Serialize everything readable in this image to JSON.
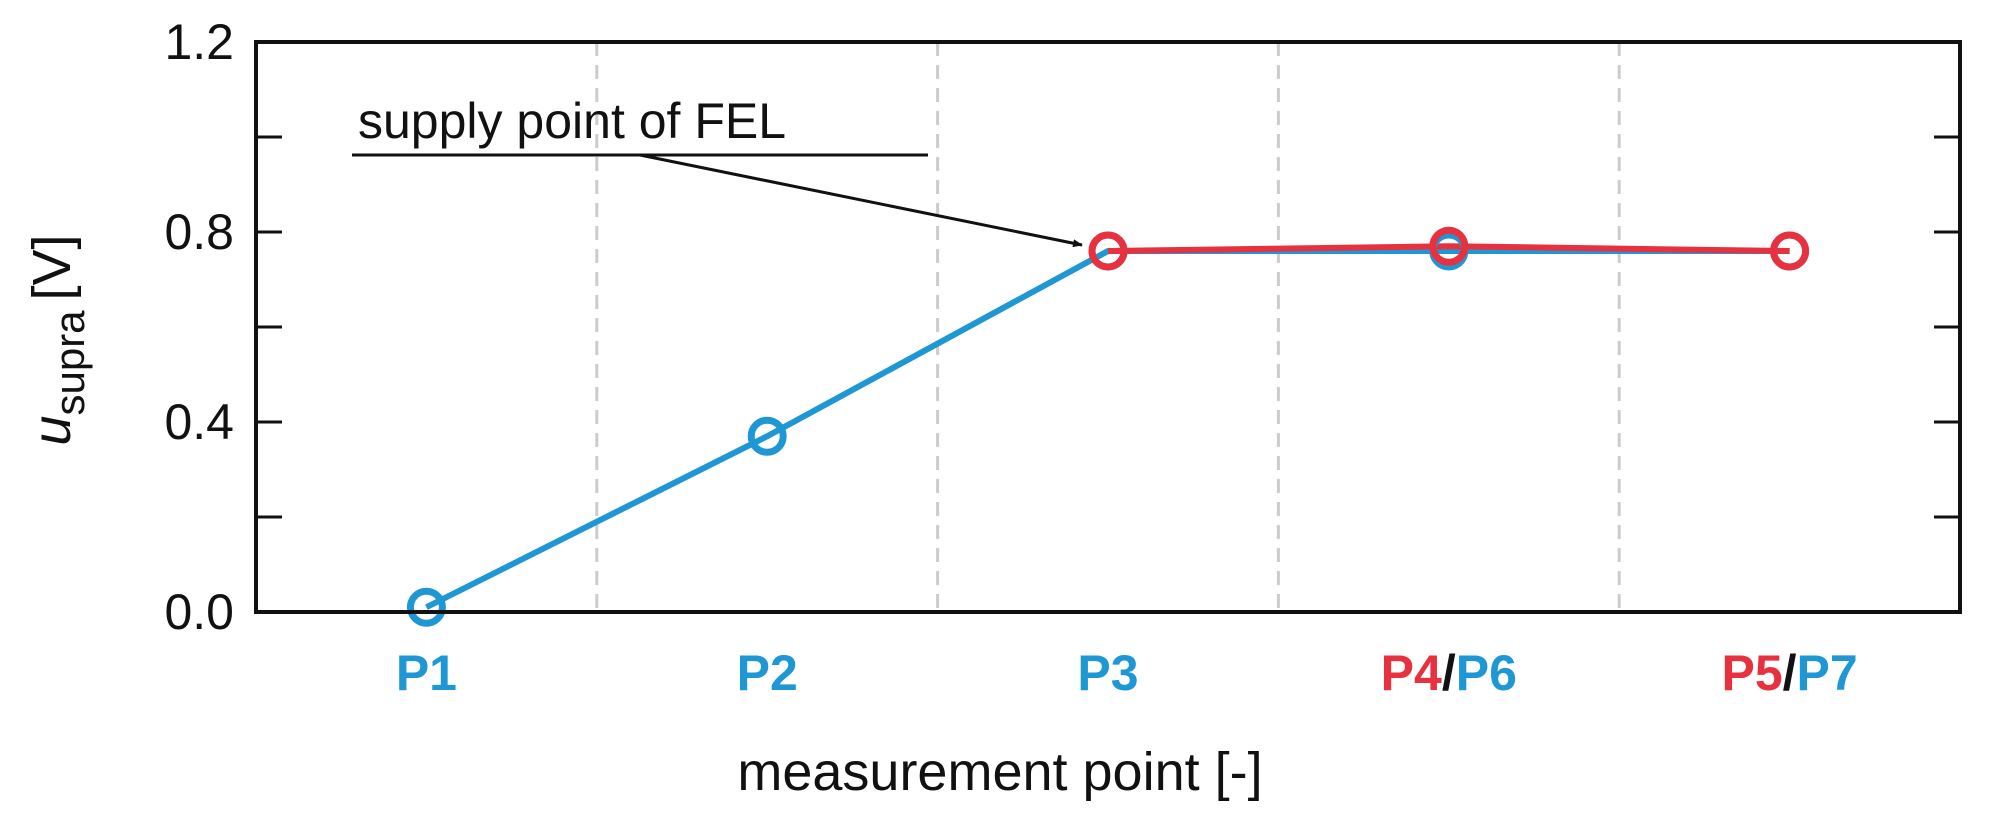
{
  "colors": {
    "blue": "#1f97d4",
    "red": "#e8313f",
    "grid": "#cccccc",
    "axis": "#111111"
  },
  "chart_data": {
    "type": "line",
    "categories": [
      "P1",
      "P2",
      "P3",
      "P4/P6",
      "P5/P7"
    ],
    "x_tick_labels": [
      [
        {
          "text": "P1",
          "color": "blue"
        }
      ],
      [
        {
          "text": "P2",
          "color": "blue"
        }
      ],
      [
        {
          "text": "P3",
          "color": "blue"
        }
      ],
      [
        {
          "text": "P4",
          "color": "red"
        },
        {
          "text": "/",
          "color": "axis"
        },
        {
          "text": "P6",
          "color": "blue"
        }
      ],
      [
        {
          "text": "P5",
          "color": "red"
        },
        {
          "text": "/",
          "color": "axis"
        },
        {
          "text": "P7",
          "color": "blue"
        }
      ]
    ],
    "series": [
      {
        "color": "blue",
        "points": [
          [
            0,
            0.01
          ],
          [
            1,
            0.37
          ],
          [
            2,
            0.76
          ],
          [
            3,
            0.76
          ],
          [
            4,
            0.76
          ]
        ]
      },
      {
        "color": "red",
        "points": [
          [
            2,
            0.76
          ],
          [
            3,
            0.77
          ],
          [
            4,
            0.76
          ]
        ]
      }
    ],
    "ylabel_main": "u",
    "ylabel_sub": "supra",
    "ylabel_unit": "[V]",
    "xlabel": "measurement point [-]",
    "ylim": [
      0,
      1.2
    ],
    "y_ticks": [
      "0.0",
      "0.4",
      "0.8",
      "1.2"
    ],
    "y_tick_values": [
      0,
      0.4,
      0.8,
      1.2
    ],
    "y_minor_ticks": [
      0.2,
      0.6,
      1.0
    ],
    "grid": "vertical dashed between categories",
    "annotation": {
      "text": "supply point of FEL",
      "target": [
        2,
        0.76
      ]
    }
  }
}
